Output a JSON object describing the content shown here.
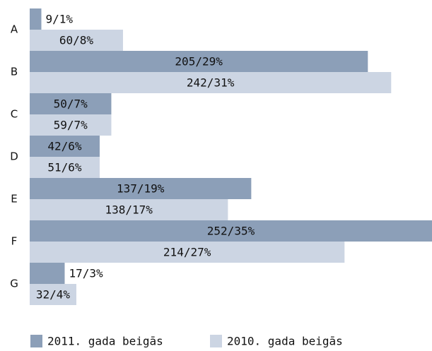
{
  "chart_data": {
    "type": "hbar",
    "categories": [
      "A",
      "B",
      "C",
      "D",
      "E",
      "F",
      "G"
    ],
    "series": [
      {
        "name": "2011. gada beigās",
        "color": "#8c9fb8",
        "values": [
          1,
          29,
          7,
          6,
          19,
          35,
          3
        ],
        "value_labels": [
          "9/1%",
          "205/29%",
          "50/7%",
          "42/6%",
          "137/19%",
          "252/35%",
          "17/3%"
        ]
      },
      {
        "name": "2010. gada beigās",
        "color": "#ccd5e3",
        "values": [
          8,
          31,
          7,
          6,
          17,
          27,
          4
        ],
        "value_labels": [
          "60/8%",
          "242/31%",
          "59/7%",
          "51/6%",
          "138/17%",
          "214/27%",
          "32/4%"
        ]
      }
    ],
    "xlim": [
      0,
      34.5
    ],
    "legend": "bottom"
  }
}
